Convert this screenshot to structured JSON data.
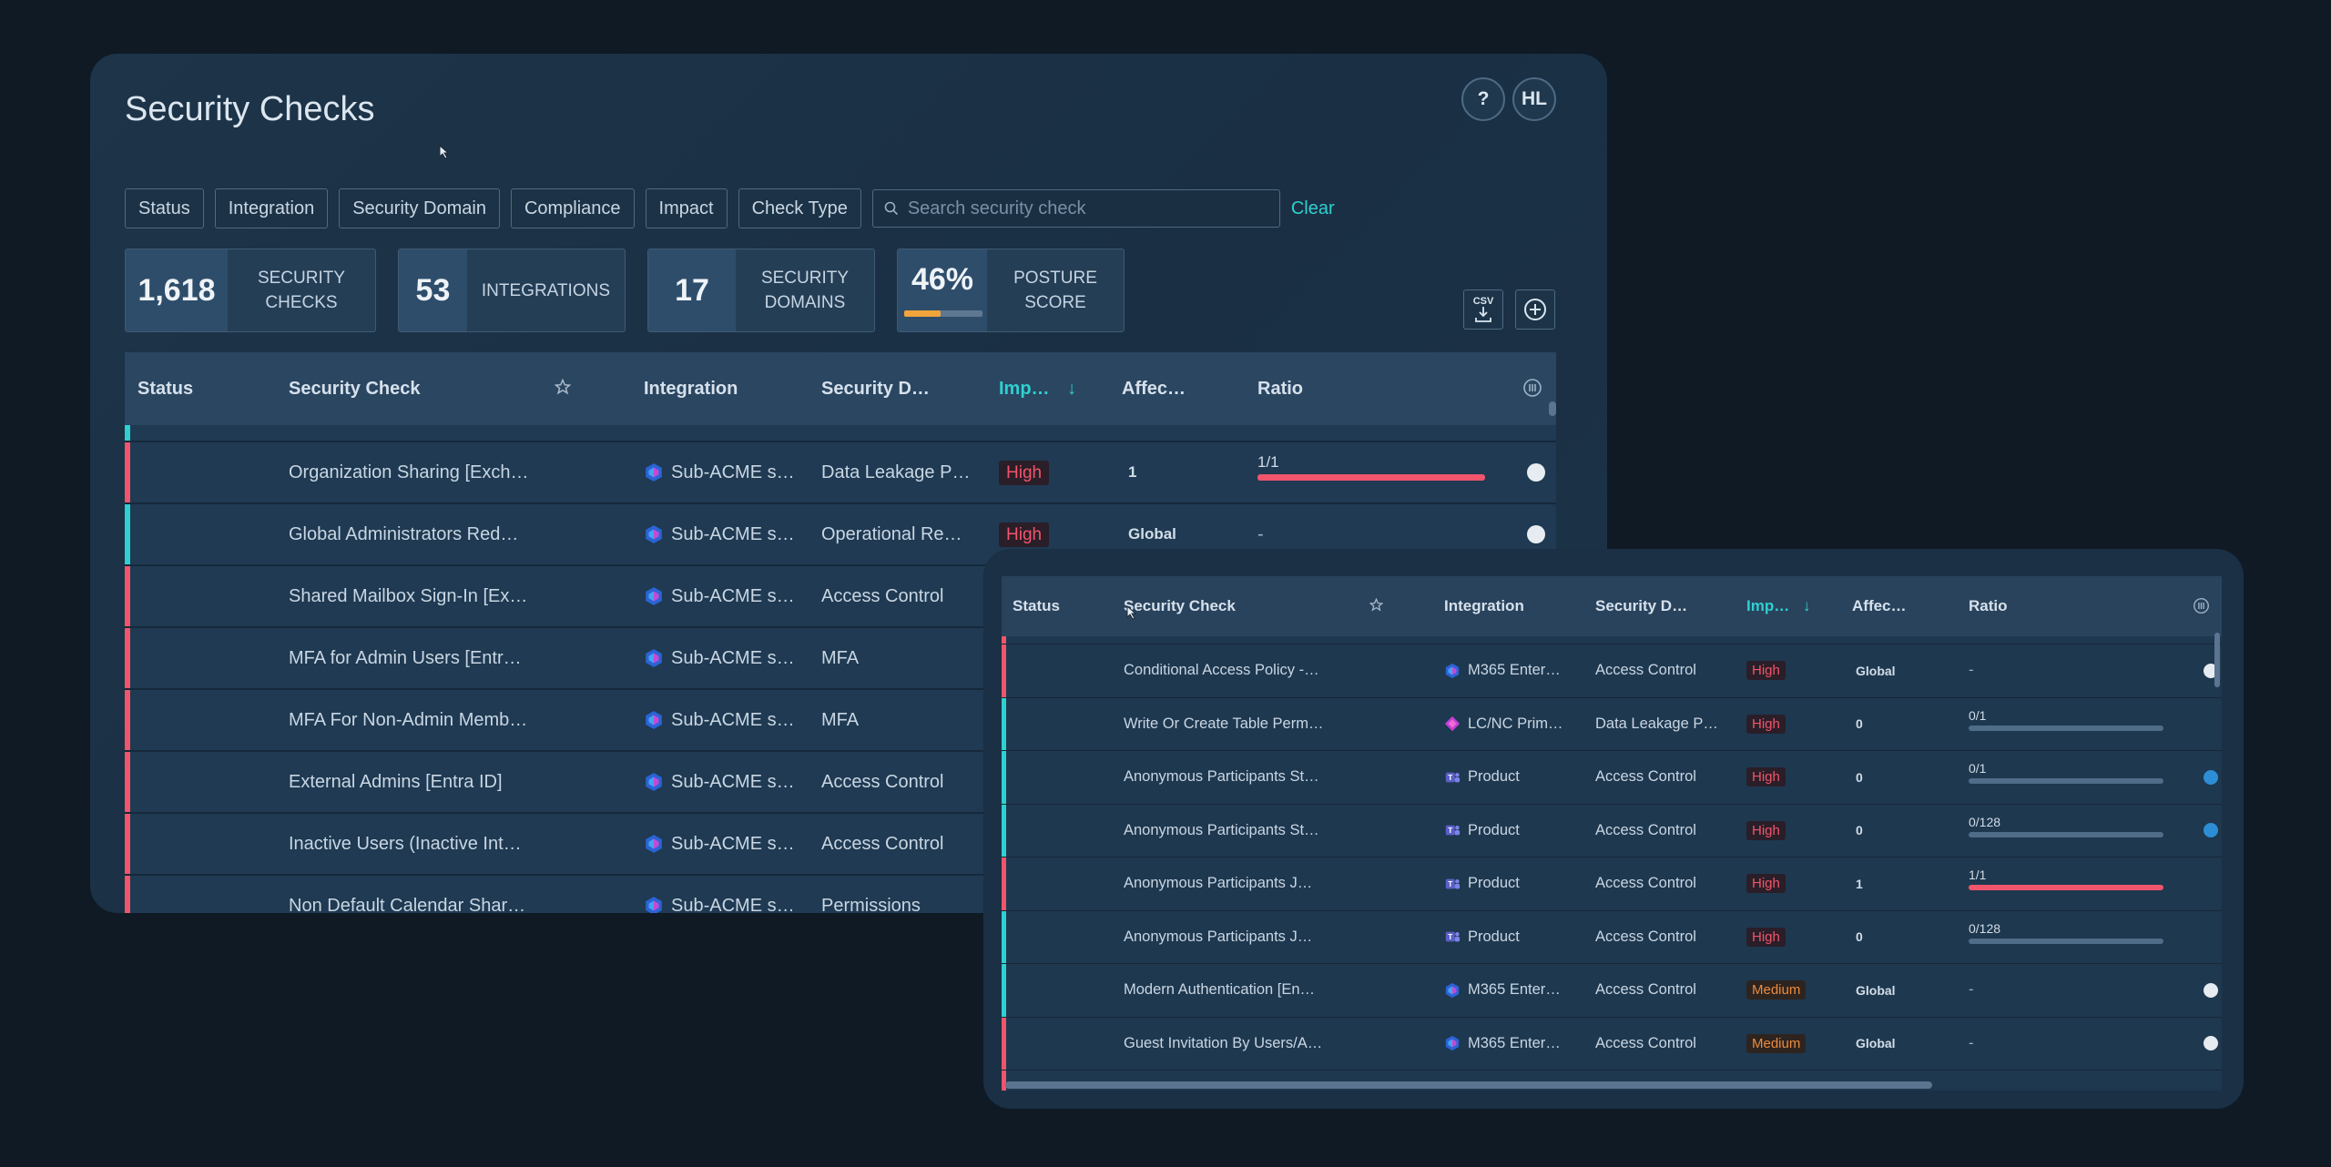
{
  "page": {
    "title": "Security Checks",
    "help_label": "?",
    "user_initials": "HL"
  },
  "filters": {
    "buttons": [
      "Status",
      "Integration",
      "Security Domain",
      "Compliance",
      "Impact",
      "Check Type"
    ],
    "search_placeholder": "Search security check",
    "clear_label": "Clear"
  },
  "stats": [
    {
      "value": "1,618",
      "label_line1": "SECURITY",
      "label_line2": "CHECKS"
    },
    {
      "value": "53",
      "label_line1": "INTEGRATIONS",
      "label_line2": ""
    },
    {
      "value": "17",
      "label_line1": "SECURITY",
      "label_line2": "DOMAINS"
    },
    {
      "value": "46%",
      "label_line1": "POSTURE",
      "label_line2": "SCORE",
      "score_fraction": 0.46,
      "score_color": "#f0a43a"
    }
  ],
  "toolbar": {
    "csv_label": "CSV"
  },
  "main_table": {
    "columns": [
      "Status",
      "Security Check",
      "Integration",
      "Security D…",
      "Imp…",
      "Affec…",
      "Ratio"
    ],
    "rows": [
      {
        "check": "Organization Sharing [Exch…",
        "integration": "Sub-ACME s…",
        "domain": "Data Leakage P…",
        "impact": "High",
        "affected": "1",
        "ratio": "1/1",
        "ratio_fraction": 1.0,
        "status_color": "#f0556b"
      },
      {
        "check": "Global Administrators Red…",
        "integration": "Sub-ACME s…",
        "domain": "Operational Re…",
        "impact": "High",
        "affected": "Global",
        "ratio": "-",
        "status_color": "#2fd0d0"
      },
      {
        "check": "Shared Mailbox Sign-In [Ex…",
        "integration": "Sub-ACME s…",
        "domain": "Access Control",
        "status_color": "#f0556b"
      },
      {
        "check": "MFA for Admin Users [Entr…",
        "integration": "Sub-ACME s…",
        "domain": "MFA",
        "status_color": "#f0556b"
      },
      {
        "check": "MFA For Non-Admin Memb…",
        "integration": "Sub-ACME s…",
        "domain": "MFA",
        "status_color": "#f0556b"
      },
      {
        "check": "External Admins [Entra ID]",
        "integration": "Sub-ACME s…",
        "domain": "Access Control",
        "status_color": "#f0556b"
      },
      {
        "check": "Inactive Users (Inactive Int…",
        "integration": "Sub-ACME s…",
        "domain": "Access Control",
        "status_color": "#f0556b"
      },
      {
        "check": "Non Default Calendar Shar…",
        "integration": "Sub-ACME s…",
        "domain": "Permissions",
        "status_color": "#f0556b"
      }
    ]
  },
  "float_table": {
    "columns": [
      "Status",
      "Security Check",
      "Integration",
      "Security D…",
      "Imp…",
      "Affec…",
      "Ratio"
    ],
    "rows": [
      {
        "check": "Conditional Access Policy -…",
        "integration": "M365 Enter…",
        "icon": "m365",
        "domain": "Access Control",
        "impact": "High",
        "affected": "Global",
        "ratio": "-",
        "status_color": "#f0556b",
        "side": "white"
      },
      {
        "check": "Write Or Create Table Perm…",
        "integration": "LC/NC Prim…",
        "icon": "lcnc",
        "domain": "Data Leakage P…",
        "impact": "High",
        "affected": "0",
        "ratio": "0/1",
        "ratio_fraction": 0,
        "status_color": "#2fd0d0",
        "side": ""
      },
      {
        "check": "Anonymous Participants St…",
        "integration": "Product",
        "icon": "teams",
        "domain": "Access Control",
        "impact": "High",
        "affected": "0",
        "ratio": "0/1",
        "ratio_fraction": 0,
        "status_color": "#2fd0d0",
        "side": "blue"
      },
      {
        "check": "Anonymous Participants St…",
        "integration": "Product",
        "icon": "teams",
        "domain": "Access Control",
        "impact": "High",
        "affected": "0",
        "ratio": "0/128",
        "ratio_fraction": 0,
        "status_color": "#2fd0d0",
        "side": "blue"
      },
      {
        "check": "Anonymous Participants J…",
        "integration": "Product",
        "icon": "teams",
        "domain": "Access Control",
        "impact": "High",
        "affected": "1",
        "ratio": "1/1",
        "ratio_fraction": 1.0,
        "status_color": "#f0556b",
        "side": ""
      },
      {
        "check": "Anonymous Participants J…",
        "integration": "Product",
        "icon": "teams",
        "domain": "Access Control",
        "impact": "High",
        "affected": "0",
        "ratio": "0/128",
        "ratio_fraction": 0,
        "status_color": "#2fd0d0",
        "side": ""
      },
      {
        "check": "Modern Authentication [En…",
        "integration": "M365 Enter…",
        "icon": "m365",
        "domain": "Access Control",
        "impact": "Medium",
        "affected": "Global",
        "ratio": "-",
        "status_color": "#2fd0d0",
        "side": "white"
      },
      {
        "check": "Guest Invitation By Users/A…",
        "integration": "M365 Enter…",
        "icon": "m365",
        "domain": "Access Control",
        "impact": "Medium",
        "affected": "Global",
        "ratio": "-",
        "status_color": "#f0556b",
        "side": "white"
      }
    ]
  },
  "colors": {
    "accent": "#2fd0d0",
    "high": "#f0556b",
    "medium": "#ed8b3b"
  }
}
